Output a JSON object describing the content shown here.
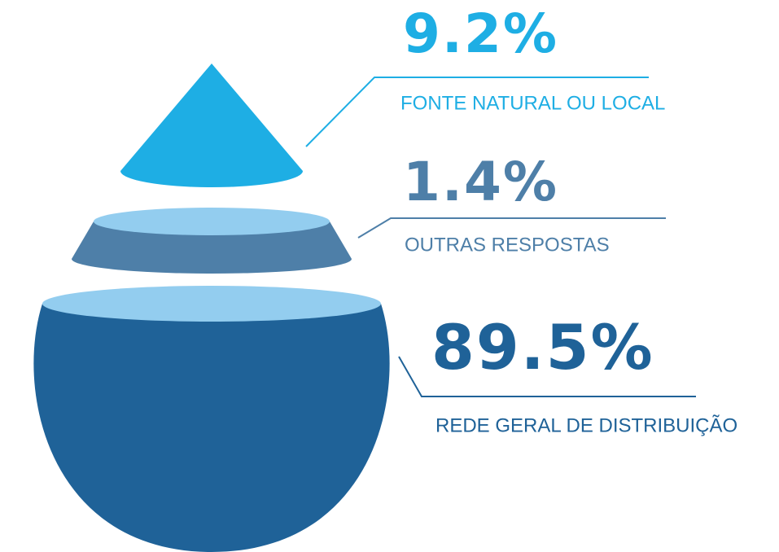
{
  "chart_data": {
    "type": "drop",
    "categories": [
      "FONTE NATURAL OU LOCAL",
      "OUTRAS RESPOSTAS",
      "REDE GERAL DE DISTRIBUIÇÃO"
    ],
    "values": [
      9.2,
      1.4,
      89.5
    ],
    "value_labels": [
      "9.2%",
      "1.4%",
      "89.5%"
    ],
    "colors": [
      "#1eaee4",
      "#4e7fa8",
      "#1f6298"
    ]
  }
}
